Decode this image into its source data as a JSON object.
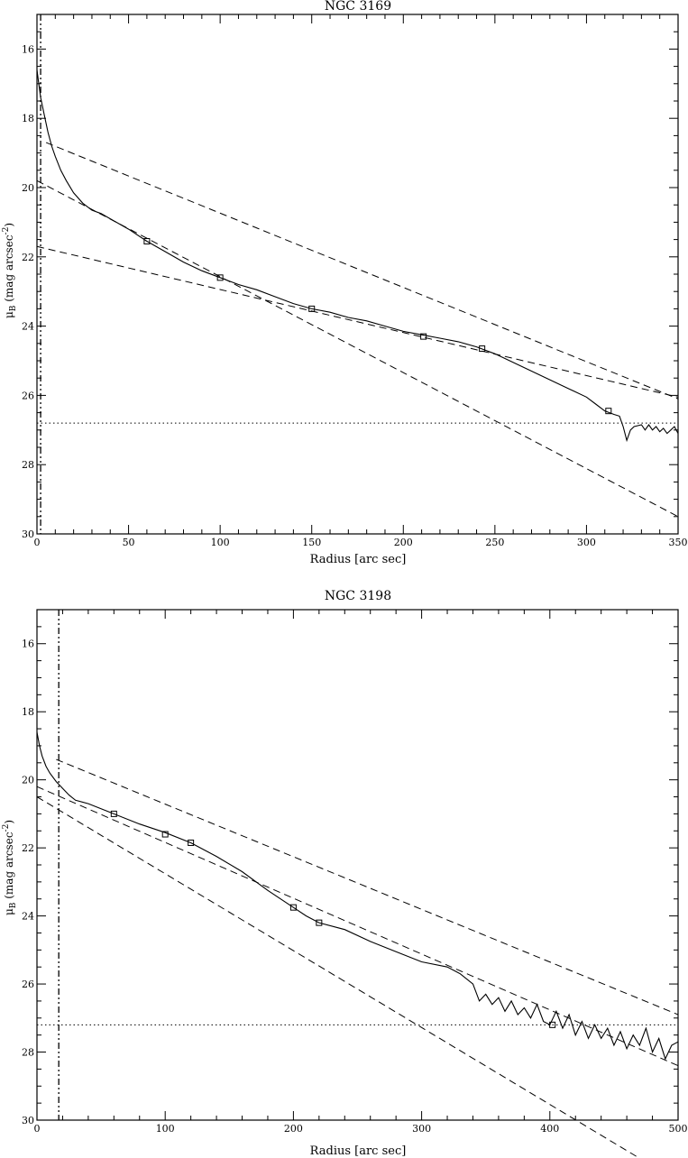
{
  "chart_data": [
    {
      "type": "line",
      "title": "NGC 3169",
      "xlabel": "Radius [arc sec]",
      "ylabel_main": "μ",
      "ylabel_sub": "B",
      "ylabel_rest": " (mag arcsec",
      "ylabel_sup": "-2",
      "ylabel_end": ")",
      "xlim": [
        0,
        350
      ],
      "ylim": [
        30,
        15
      ],
      "xticks": [
        0,
        50,
        100,
        150,
        200,
        250,
        300,
        350
      ],
      "yticks": [
        16,
        18,
        20,
        22,
        24,
        26,
        28,
        30
      ],
      "xtick_labels": [
        "0",
        "50",
        "100",
        "150",
        "200",
        "250",
        "300",
        "350"
      ],
      "ytick_labels": [
        "16",
        "18",
        "20",
        "22",
        "24",
        "26",
        "28",
        "30"
      ],
      "sky_level": 26.8,
      "vertical_markers": [
        2
      ],
      "profile": [
        [
          0,
          16.6
        ],
        [
          1,
          17.0
        ],
        [
          2,
          17.4
        ],
        [
          4,
          17.9
        ],
        [
          6,
          18.4
        ],
        [
          8,
          18.8
        ],
        [
          10,
          19.1
        ],
        [
          13,
          19.5
        ],
        [
          16,
          19.8
        ],
        [
          20,
          20.15
        ],
        [
          25,
          20.45
        ],
        [
          30,
          20.65
        ],
        [
          35,
          20.75
        ],
        [
          40,
          20.9
        ],
        [
          50,
          21.2
        ],
        [
          60,
          21.55
        ],
        [
          70,
          21.85
        ],
        [
          80,
          22.15
        ],
        [
          90,
          22.4
        ],
        [
          100,
          22.6
        ],
        [
          110,
          22.8
        ],
        [
          120,
          22.95
        ],
        [
          130,
          23.15
        ],
        [
          140,
          23.35
        ],
        [
          150,
          23.5
        ],
        [
          160,
          23.6
        ],
        [
          170,
          23.75
        ],
        [
          180,
          23.85
        ],
        [
          190,
          24.0
        ],
        [
          200,
          24.15
        ],
        [
          210,
          24.25
        ],
        [
          220,
          24.35
        ],
        [
          230,
          24.45
        ],
        [
          240,
          24.6
        ],
        [
          250,
          24.8
        ],
        [
          260,
          25.05
        ],
        [
          270,
          25.3
        ],
        [
          280,
          25.55
        ],
        [
          290,
          25.8
        ],
        [
          300,
          26.05
        ],
        [
          305,
          26.25
        ],
        [
          310,
          26.45
        ],
        [
          315,
          26.55
        ],
        [
          318,
          26.6
        ],
        [
          320,
          26.9
        ],
        [
          322,
          27.3
        ],
        [
          324,
          27.0
        ],
        [
          326,
          26.9
        ],
        [
          330,
          26.85
        ],
        [
          332,
          27.0
        ],
        [
          334,
          26.85
        ],
        [
          336,
          27.0
        ],
        [
          338,
          26.9
        ],
        [
          340,
          27.05
        ],
        [
          342,
          26.95
        ],
        [
          344,
          27.1
        ],
        [
          346,
          27.0
        ],
        [
          348,
          26.9
        ],
        [
          350,
          27.1
        ]
      ],
      "fits": [
        {
          "x": [
            5,
            350
          ],
          "y": [
            18.7,
            26.1
          ]
        },
        {
          "x": [
            0,
            350
          ],
          "y": [
            19.8,
            29.5
          ]
        },
        {
          "x": [
            0,
            350
          ],
          "y": [
            21.7,
            26.05
          ]
        }
      ],
      "markers": [
        [
          60,
          21.55
        ],
        [
          100,
          22.6
        ],
        [
          150,
          23.5
        ],
        [
          211,
          24.3
        ],
        [
          243,
          24.65
        ],
        [
          312,
          26.45
        ]
      ]
    },
    {
      "type": "line",
      "title": "NGC 3198",
      "xlabel": "Radius [arc sec]",
      "ylabel_main": "μ",
      "ylabel_sub": "B",
      "ylabel_rest": " (mag arcsec",
      "ylabel_sup": "-2",
      "ylabel_end": ")",
      "xlim": [
        0,
        500
      ],
      "ylim": [
        30,
        15
      ],
      "xticks": [
        0,
        100,
        200,
        300,
        400,
        500
      ],
      "yticks": [
        16,
        18,
        20,
        22,
        24,
        26,
        28,
        30
      ],
      "xtick_labels": [
        "0",
        "100",
        "200",
        "300",
        "400",
        "500"
      ],
      "ytick_labels": [
        "16",
        "18",
        "20",
        "22",
        "24",
        "26",
        "28",
        "30"
      ],
      "sky_level": 27.2,
      "vertical_markers": [
        17
      ],
      "profile": [
        [
          0,
          18.6
        ],
        [
          2,
          19.0
        ],
        [
          4,
          19.3
        ],
        [
          7,
          19.6
        ],
        [
          10,
          19.8
        ],
        [
          15,
          20.05
        ],
        [
          20,
          20.25
        ],
        [
          25,
          20.45
        ],
        [
          30,
          20.6
        ],
        [
          40,
          20.7
        ],
        [
          50,
          20.85
        ],
        [
          60,
          21.0
        ],
        [
          80,
          21.3
        ],
        [
          100,
          21.55
        ],
        [
          120,
          21.85
        ],
        [
          140,
          22.25
        ],
        [
          160,
          22.7
        ],
        [
          180,
          23.25
        ],
        [
          200,
          23.75
        ],
        [
          210,
          24.0
        ],
        [
          220,
          24.2
        ],
        [
          240,
          24.4
        ],
        [
          260,
          24.75
        ],
        [
          280,
          25.05
        ],
        [
          300,
          25.35
        ],
        [
          320,
          25.5
        ],
        [
          330,
          25.7
        ],
        [
          340,
          26.0
        ],
        [
          345,
          26.5
        ],
        [
          350,
          26.3
        ],
        [
          355,
          26.6
        ],
        [
          360,
          26.4
        ],
        [
          365,
          26.8
        ],
        [
          370,
          26.5
        ],
        [
          375,
          26.9
        ],
        [
          380,
          26.7
        ],
        [
          385,
          27.0
        ],
        [
          390,
          26.6
        ],
        [
          395,
          27.1
        ],
        [
          400,
          27.2
        ],
        [
          405,
          26.8
        ],
        [
          410,
          27.3
        ],
        [
          415,
          26.9
        ],
        [
          420,
          27.5
        ],
        [
          425,
          27.1
        ],
        [
          430,
          27.6
        ],
        [
          435,
          27.2
        ],
        [
          440,
          27.6
        ],
        [
          445,
          27.3
        ],
        [
          450,
          27.8
        ],
        [
          455,
          27.4
        ],
        [
          460,
          27.9
        ],
        [
          465,
          27.5
        ],
        [
          470,
          27.8
        ],
        [
          475,
          27.3
        ],
        [
          480,
          28.0
        ],
        [
          485,
          27.6
        ],
        [
          490,
          28.2
        ],
        [
          495,
          27.8
        ],
        [
          500,
          27.7
        ]
      ],
      "fits": [
        {
          "x": [
            15,
            500
          ],
          "y": [
            19.4,
            26.9
          ]
        },
        {
          "x": [
            0,
            500
          ],
          "y": [
            20.5,
            31.8
          ]
        },
        {
          "x": [
            0,
            500
          ],
          "y": [
            20.2,
            28.4
          ]
        }
      ],
      "markers": [
        [
          60,
          21.0
        ],
        [
          100,
          21.6
        ],
        [
          120,
          21.85
        ],
        [
          200,
          23.75
        ],
        [
          220,
          24.2
        ],
        [
          402,
          27.2
        ]
      ]
    }
  ]
}
